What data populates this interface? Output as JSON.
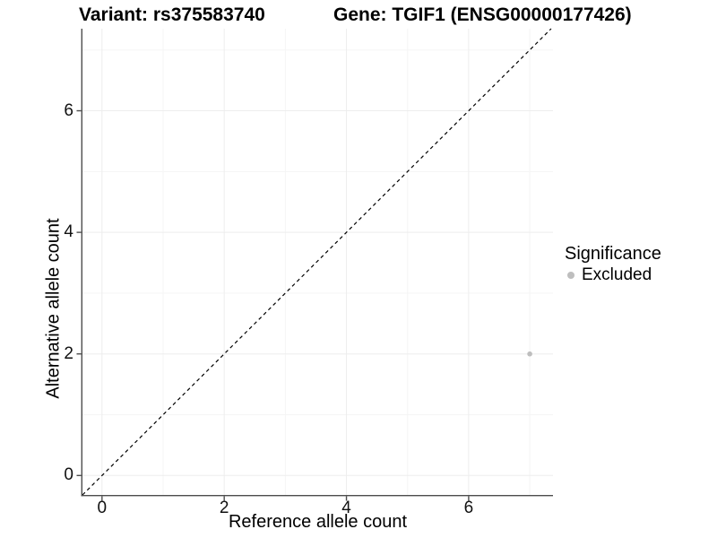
{
  "chart_data": {
    "type": "scatter",
    "titles": [
      "Variant: rs375583740",
      "Gene: TGIF1 (ENSG00000177426)"
    ],
    "xlabel": "Reference allele count",
    "ylabel": "Alternative allele count",
    "xlim": [
      -0.32,
      7.38
    ],
    "ylim": [
      -0.32,
      7.35
    ],
    "x_ticks": [
      0,
      2,
      4,
      6
    ],
    "y_ticks": [
      0,
      2,
      4,
      6
    ],
    "x_minor_ticks": [
      1,
      3,
      5,
      7
    ],
    "y_minor_ticks": [
      1,
      3,
      5,
      7
    ],
    "grid": true,
    "legend_title": "Significance",
    "legend_position": "right",
    "series": [
      {
        "name": "Excluded",
        "color": "#bebebe",
        "points": [
          [
            7,
            2
          ]
        ]
      }
    ],
    "reference_line": {
      "slope": 1,
      "intercept": 0,
      "style": "dashed",
      "color": "#000000"
    }
  },
  "style": {
    "background": "#ffffff",
    "axis_line_color": "#4d4d4d",
    "tick_mark_color": "#4d4d4d",
    "grid_major_color": "#ededed",
    "grid_minor_color": "#f5f5f5",
    "tick_label_color": "#111111",
    "text_color": "#000000"
  }
}
